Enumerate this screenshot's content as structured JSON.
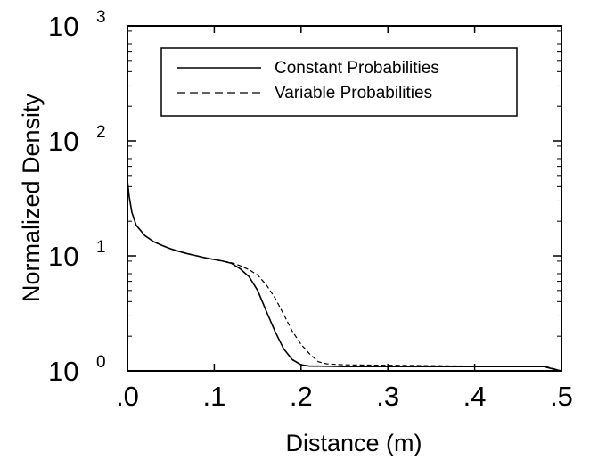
{
  "chart_data": {
    "type": "line",
    "title": "",
    "xlabel": "Distance (m)",
    "ylabel": "Normalized Density",
    "xlim": [
      0,
      0.5
    ],
    "ylim": [
      1,
      1000
    ],
    "yscale": "log",
    "grid": false,
    "legend_position": "top-right",
    "x_ticks": [
      {
        "value": 0.0,
        "label": ".0"
      },
      {
        "value": 0.1,
        "label": ".1"
      },
      {
        "value": 0.2,
        "label": ".2"
      },
      {
        "value": 0.3,
        "label": ".3"
      },
      {
        "value": 0.4,
        "label": ".4"
      },
      {
        "value": 0.5,
        "label": ".5"
      }
    ],
    "y_ticks": [
      {
        "value": 1,
        "base": "10",
        "exponent": "0"
      },
      {
        "value": 10,
        "base": "10",
        "exponent": "1"
      },
      {
        "value": 100,
        "base": "10",
        "exponent": "2"
      },
      {
        "value": 1000,
        "base": "10",
        "exponent": "3"
      }
    ],
    "series": [
      {
        "name": "Constant Probabilities",
        "style": "solid",
        "color": "#000000",
        "x": [
          0.0,
          0.002,
          0.005,
          0.01,
          0.02,
          0.03,
          0.04,
          0.05,
          0.06,
          0.07,
          0.08,
          0.09,
          0.1,
          0.11,
          0.12,
          0.13,
          0.14,
          0.15,
          0.16,
          0.17,
          0.18,
          0.19,
          0.2,
          0.21,
          0.22,
          0.25,
          0.3,
          0.35,
          0.4,
          0.45,
          0.48,
          0.49,
          0.5
        ],
        "y": [
          45,
          33,
          24,
          18.5,
          15,
          13.3,
          12.3,
          11.5,
          10.9,
          10.4,
          10.0,
          9.6,
          9.3,
          9.0,
          8.6,
          7.7,
          6.6,
          5.0,
          3.3,
          2.2,
          1.55,
          1.25,
          1.13,
          1.1,
          1.1,
          1.09,
          1.09,
          1.09,
          1.09,
          1.09,
          1.09,
          1.04,
          1.0
        ]
      },
      {
        "name": "Variable Probabilities",
        "style": "dashed",
        "color": "#000000",
        "x": [
          0.0,
          0.002,
          0.005,
          0.01,
          0.02,
          0.03,
          0.04,
          0.05,
          0.06,
          0.07,
          0.08,
          0.09,
          0.1,
          0.11,
          0.12,
          0.13,
          0.14,
          0.15,
          0.16,
          0.17,
          0.18,
          0.19,
          0.2,
          0.21,
          0.22,
          0.23,
          0.25,
          0.3,
          0.35,
          0.4,
          0.45,
          0.48,
          0.49,
          0.5
        ],
        "y": [
          45,
          33,
          24,
          18.5,
          15,
          13.3,
          12.3,
          11.5,
          10.9,
          10.4,
          10.0,
          9.6,
          9.3,
          9.0,
          8.7,
          8.2,
          7.6,
          6.8,
          5.6,
          4.3,
          3.1,
          2.2,
          1.7,
          1.4,
          1.2,
          1.15,
          1.13,
          1.12,
          1.11,
          1.1,
          1.1,
          1.1,
          1.05,
          1.0
        ]
      }
    ]
  }
}
